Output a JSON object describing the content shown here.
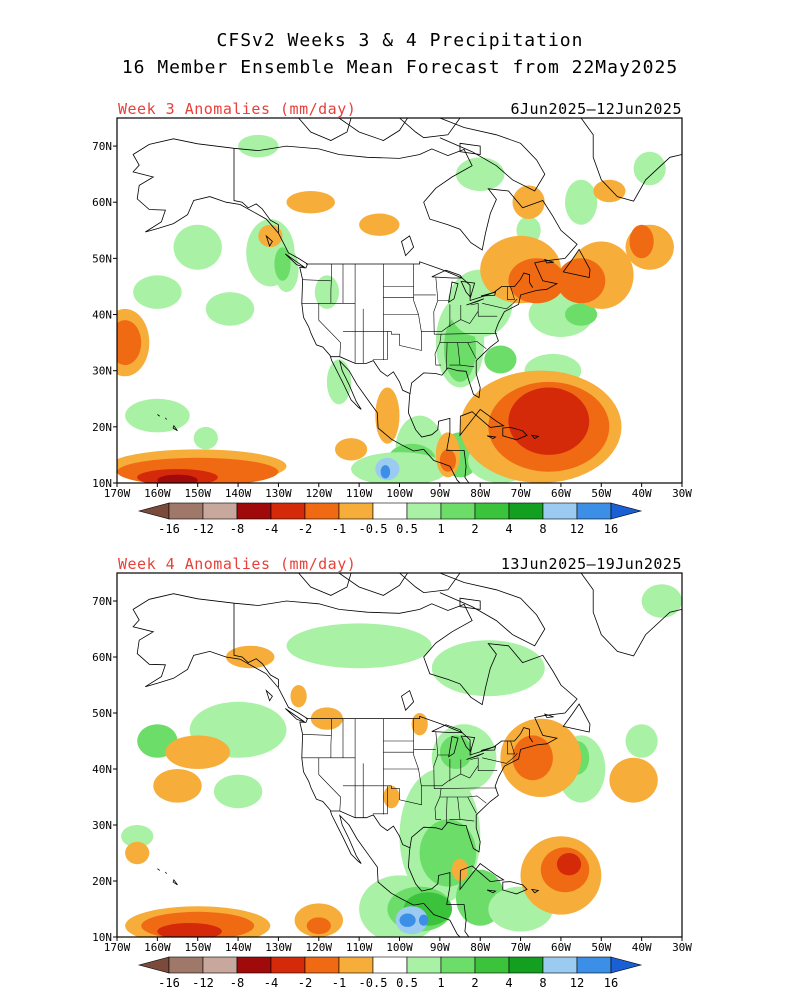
{
  "title": {
    "line1": "CFSv2 Weeks 3 & 4 Precipitation",
    "line2": "16 Member Ensemble Mean Forecast from 22May2025"
  },
  "lon_labels": [
    "170W",
    "160W",
    "150W",
    "140W",
    "130W",
    "120W",
    "110W",
    "100W",
    "90W",
    "80W",
    "70W",
    "60W",
    "50W",
    "40W",
    "30W"
  ],
  "lat_labels": [
    "10N",
    "20N",
    "30N",
    "40N",
    "50N",
    "60N",
    "70N"
  ],
  "colorbar": {
    "labels": [
      "-16",
      "-12",
      "-8",
      "-4",
      "-2",
      "-1",
      "-0.5",
      "0.5",
      "1",
      "2",
      "4",
      "8",
      "12",
      "16"
    ],
    "colors": [
      "#7a4a3a",
      "#a0786a",
      "#c8a79c",
      "#a00a0a",
      "#d42a0a",
      "#f06a14",
      "#f7ad3a",
      "#ffffff",
      "#a9f1a5",
      "#6ddd6a",
      "#3bc43b",
      "#139f1f",
      "#9ccbf2",
      "#3c8fe6",
      "#1a5fd4"
    ]
  },
  "panels": [
    {
      "label": "Week 3 Anomalies (mm/day)",
      "dates": "6Jun2025–12Jun2025"
    },
    {
      "label": "Week 4 Anomalies (mm/day)",
      "dates": "13Jun2025–19Jun2025"
    }
  ]
}
